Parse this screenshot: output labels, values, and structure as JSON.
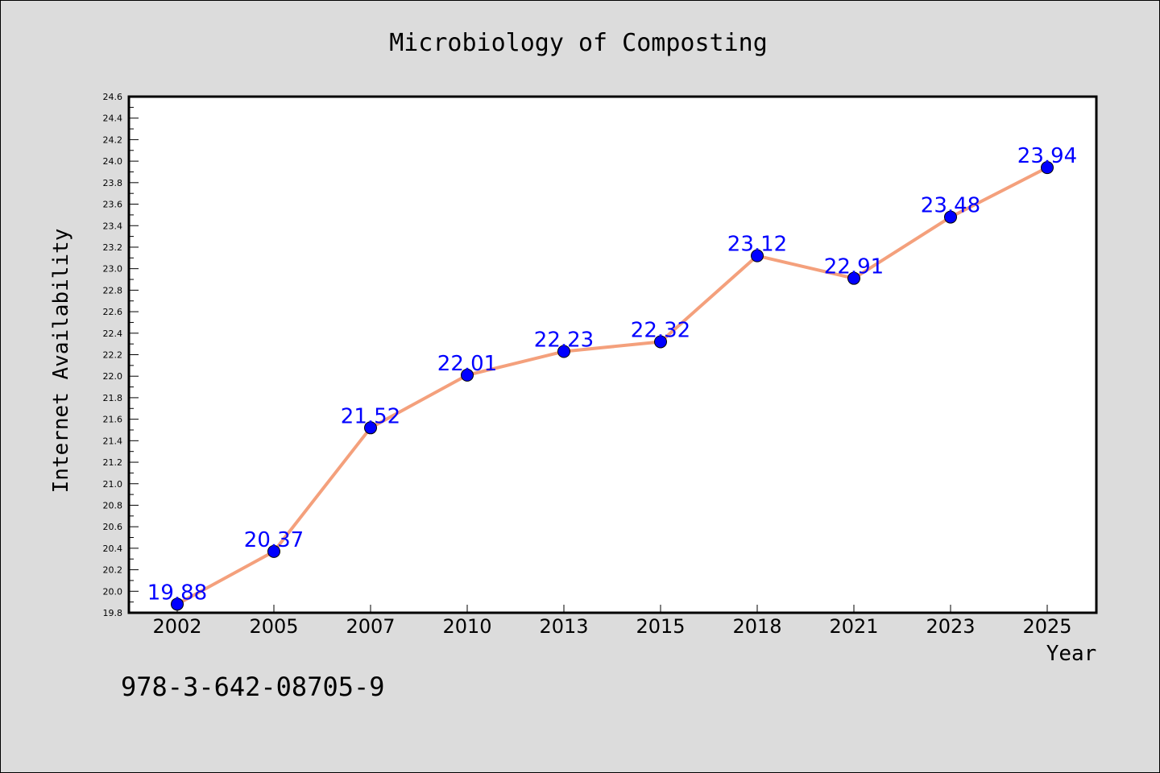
{
  "chart_data": {
    "type": "line",
    "title": "Microbiology of Composting",
    "xlabel": "Year",
    "ylabel": "Internet Availability",
    "categories": [
      "2002",
      "2005",
      "2007",
      "2010",
      "2013",
      "2015",
      "2018",
      "2021",
      "2023",
      "2025"
    ],
    "values": [
      19.88,
      20.37,
      21.52,
      22.01,
      22.23,
      22.32,
      23.12,
      22.91,
      23.48,
      23.94
    ],
    "data_labels": [
      "19.88",
      "20.37",
      "21.52",
      "22.01",
      "22.23",
      "22.32",
      "23.12",
      "22.91",
      "23.48",
      "23.94"
    ],
    "ylim": [
      19.8,
      24.6
    ],
    "y_ticks": [
      "19.8",
      "20.0",
      "20.2",
      "20.4",
      "20.6",
      "20.8",
      "21.0",
      "21.2",
      "21.4",
      "21.6",
      "21.8",
      "22.0",
      "22.2",
      "22.4",
      "22.6",
      "22.8",
      "23.0",
      "23.2",
      "23.4",
      "23.6",
      "23.8",
      "24.0",
      "24.2",
      "24.4",
      "24.6"
    ],
    "grid": false,
    "legend": "none",
    "colors": {
      "line": "#f4a07c",
      "marker": "#0000ff",
      "label": "#0000ff",
      "background": "#dcdcdc",
      "plot_bg": "#ffffff"
    }
  },
  "footer": {
    "isbn": "978-3-642-08705-9"
  }
}
